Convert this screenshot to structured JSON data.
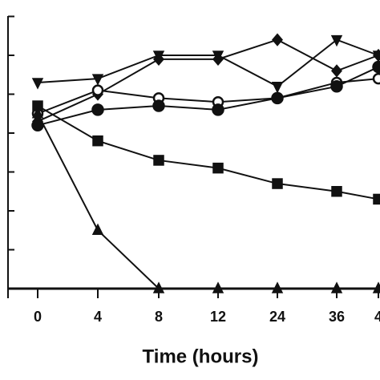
{
  "chart_data": {
    "type": "line",
    "x_label": "Time (hours)",
    "categories": [
      "0",
      "4",
      "8",
      "12",
      "24",
      "36",
      "4"
    ],
    "ylim": [
      0,
      7.2
    ],
    "yticks": [
      0,
      1,
      2,
      3,
      4,
      5,
      6,
      7
    ],
    "color": "#111111",
    "series": [
      {
        "marker": "triangle-down",
        "color": "#111111",
        "values": [
          5.3,
          5.4,
          6.0,
          6.0,
          5.2,
          6.4,
          6.0
        ]
      },
      {
        "marker": "diamond",
        "color": "#111111",
        "values": [
          4.3,
          5.0,
          5.9,
          5.9,
          6.4,
          5.6,
          6.0
        ]
      },
      {
        "marker": "circle-open",
        "color": "#111111",
        "values": [
          4.5,
          5.1,
          4.9,
          4.8,
          4.9,
          5.3,
          5.4
        ]
      },
      {
        "marker": "circle",
        "color": "#111111",
        "values": [
          4.2,
          4.6,
          4.7,
          4.6,
          4.9,
          5.2,
          5.7
        ]
      },
      {
        "marker": "square",
        "color": "#111111",
        "values": [
          4.7,
          3.8,
          3.3,
          3.1,
          2.7,
          2.5,
          2.3
        ]
      },
      {
        "marker": "triangle-up",
        "color": "#111111",
        "values": [
          4.5,
          1.5,
          0.0,
          0.0,
          0.0,
          0.0,
          0.0
        ]
      }
    ]
  }
}
